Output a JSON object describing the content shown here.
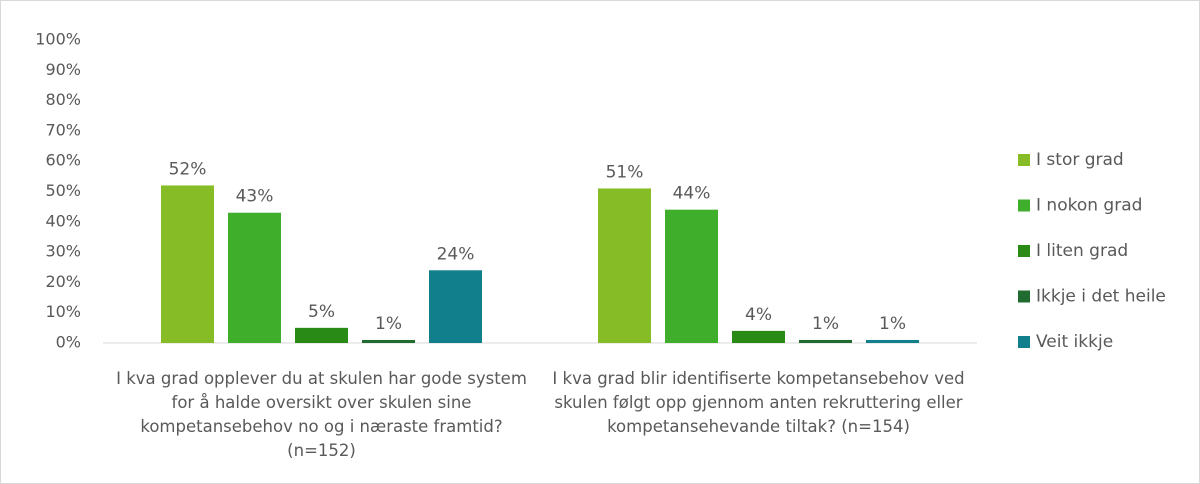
{
  "chart_data": {
    "type": "bar",
    "categories": [
      "I kva grad opplever du at skulen har gode system for å halde oversikt over skulen sine kompetansebehov no og i næraste framtid? (n=152)",
      "I kva grad blir identifiserte kompetansebehov ved skulen følgt opp gjennom anten rekruttering eller kompetansehevande tiltak? (n=154)"
    ],
    "series": [
      {
        "name": "I stor grad",
        "color": "#86bc25",
        "values": [
          52,
          51
        ],
        "value_labels": [
          "52%",
          "51%"
        ]
      },
      {
        "name": "I nokon grad",
        "color": "#3fae2a",
        "values": [
          43,
          44
        ],
        "value_labels": [
          "43%",
          "44%"
        ]
      },
      {
        "name": "I liten grad",
        "color": "#2a8a16",
        "values": [
          5,
          4
        ],
        "value_labels": [
          "5%",
          "4%"
        ]
      },
      {
        "name": "Ikkje i det heile",
        "color": "#1f6b30",
        "values": [
          1,
          1
        ],
        "value_labels": [
          "1%",
          "1%"
        ]
      },
      {
        "name": "Veit ikkje",
        "color": "#12808c",
        "values": [
          24,
          1
        ],
        "value_labels": [
          "24%",
          "1%"
        ]
      }
    ],
    "ylim": [
      0,
      100
    ],
    "yticks": [
      {
        "value": 0,
        "label": "0%"
      },
      {
        "value": 10,
        "label": "10%"
      },
      {
        "value": 20,
        "label": "20%"
      },
      {
        "value": 30,
        "label": "30%"
      },
      {
        "value": 40,
        "label": "40%"
      },
      {
        "value": 50,
        "label": "50%"
      },
      {
        "value": 60,
        "label": "60%"
      },
      {
        "value": 70,
        "label": "70%"
      },
      {
        "value": 80,
        "label": "80%"
      },
      {
        "value": 90,
        "label": "90%"
      },
      {
        "value": 100,
        "label": "100%"
      }
    ],
    "legend": "right"
  }
}
